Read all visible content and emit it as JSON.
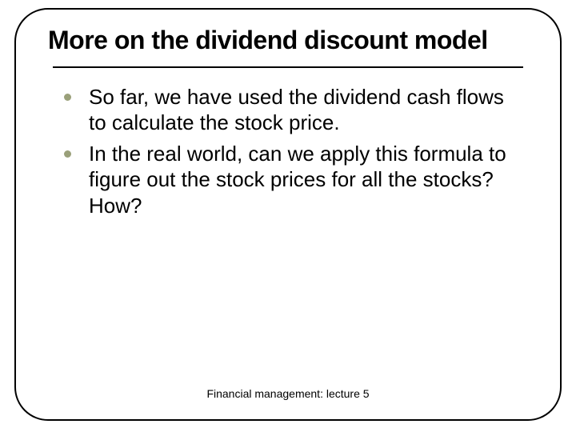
{
  "slide": {
    "title": "More on the dividend discount model",
    "title_fontsize": 32,
    "title_weight": 900,
    "title_color": "#000000",
    "bullets": [
      "So far, we have used the dividend cash flows to calculate the stock price.",
      "In the real world, can we apply this formula to figure out the stock prices for all the stocks? How?"
    ],
    "bullet_fontsize": 26,
    "bullet_color": "#000000",
    "bullet_dot_color": "#9aa07a",
    "footer": "Financial management: lecture 5",
    "footer_fontsize": 14,
    "frame_border_color": "#000000",
    "frame_border_radius": 42,
    "background_color": "#ffffff"
  }
}
